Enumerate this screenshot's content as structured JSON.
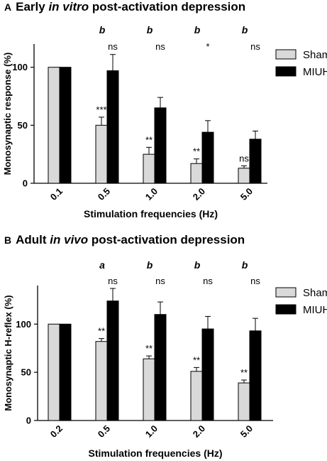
{
  "panels": [
    {
      "label": "A",
      "title_pre": "Early ",
      "title_italic": "in vitro",
      "title_post": " post-activation depression"
    },
    {
      "label": "B",
      "title_pre": "Adult ",
      "title_italic": "in vivo",
      "title_post": " post-activation depression"
    }
  ],
  "chart_data": [
    {
      "type": "bar",
      "title": "Early in vitro post-activation depression",
      "xlabel": "Stimulation frequencies (Hz)",
      "ylabel": "Monosynaptic response (%)",
      "ylim": [
        0,
        120
      ],
      "yticks": [
        0,
        50,
        100
      ],
      "categories": [
        "0.1",
        "0.5",
        "1.0",
        "2.0",
        "5.0"
      ],
      "legend_position": "top-right",
      "series": [
        {
          "name": "Sham",
          "color": "#d9d9d9",
          "values": [
            100,
            50,
            25,
            17,
            13
          ],
          "errors": [
            0,
            7,
            6,
            4,
            2
          ]
        },
        {
          "name": "MIUH",
          "color": "#000000",
          "values": [
            100,
            97,
            65,
            44,
            38
          ],
          "errors": [
            0,
            14,
            9,
            10,
            7
          ]
        }
      ],
      "sham_annotations": [
        "",
        "***",
        "**",
        "**",
        "ns"
      ],
      "top_annotations": [
        "",
        "b",
        "b",
        "b",
        "b"
      ],
      "miuh_annotations": [
        "",
        "ns",
        "ns",
        "*",
        "ns"
      ]
    },
    {
      "type": "bar",
      "title": "Adult in vivo post-activation depression",
      "xlabel": "Stimulation frequencies (Hz)",
      "ylabel": "Monosynaptic H-reflex (%)",
      "ylim": [
        0,
        140
      ],
      "yticks": [
        0,
        50,
        100
      ],
      "categories": [
        "0.2",
        "0.5",
        "1.0",
        "2.0",
        "5.0"
      ],
      "legend_position": "top-right",
      "series": [
        {
          "name": "Sham",
          "color": "#d9d9d9",
          "values": [
            100,
            82,
            64,
            51,
            39
          ],
          "errors": [
            0,
            3,
            3,
            4,
            3
          ]
        },
        {
          "name": "MIUH",
          "color": "#000000",
          "values": [
            100,
            124,
            110,
            95,
            93
          ],
          "errors": [
            0,
            13,
            13,
            13,
            13
          ]
        }
      ],
      "sham_annotations": [
        "",
        "**",
        "**",
        "**",
        "**"
      ],
      "top_annotations": [
        "",
        "a",
        "b",
        "b",
        "b"
      ],
      "miuh_annotations": [
        "",
        "ns",
        "ns",
        "ns",
        "ns"
      ]
    }
  ]
}
